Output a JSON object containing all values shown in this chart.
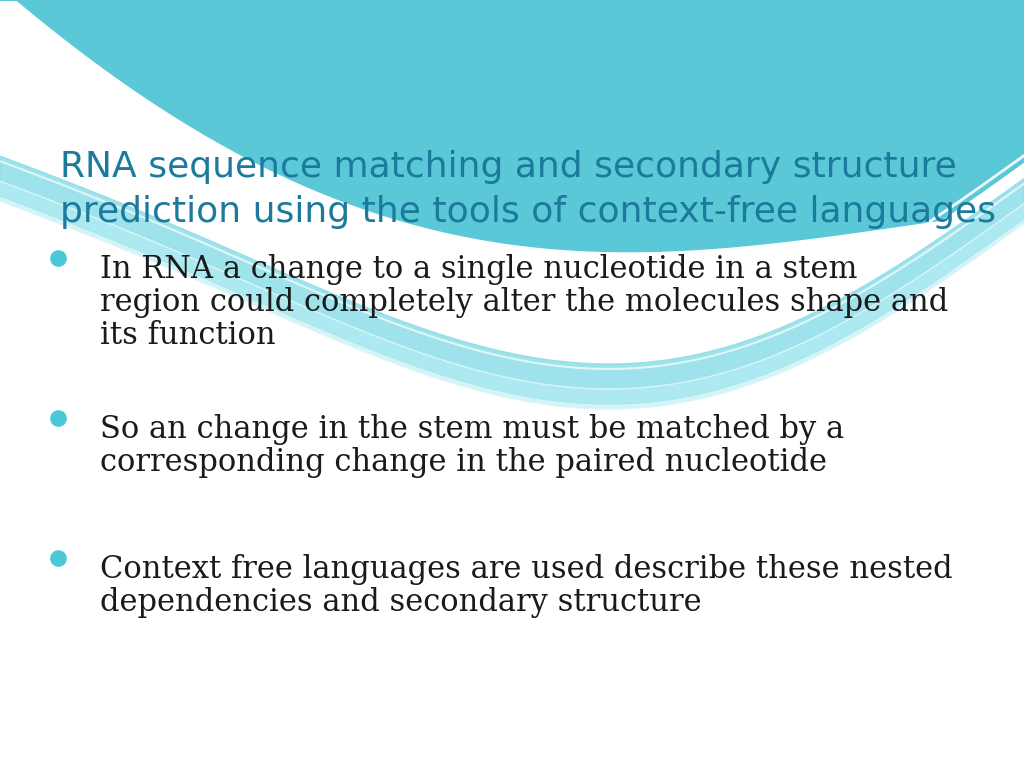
{
  "title_line1": "RNA sequence matching and secondary structure",
  "title_line2": "prediction using the tools of context-free languages",
  "title_color": "#1C7A9C",
  "bullet_color": "#4DC8D8",
  "text_color": "#1a1a1a",
  "background_color": "#f2f2f2",
  "slide_bg": "#ffffff",
  "bullet_points": [
    {
      "lines": [
        "In RNA a change to a single nucleotide in a stem",
        "region could completely alter the molecules shape and",
        "its function"
      ]
    },
    {
      "lines": [
        "So an change in the stem must be matched by a",
        "corresponding change in the paired nucleotide"
      ]
    },
    {
      "lines": [
        "Context free languages are used describe these nested",
        "dependencies and secondary structure"
      ]
    }
  ],
  "wave_teal_dark": "#5BC8D8",
  "wave_teal_mid": "#8DDDE8",
  "wave_teal_light": "#B8EEF4",
  "wave_white": "#FFFFFF"
}
